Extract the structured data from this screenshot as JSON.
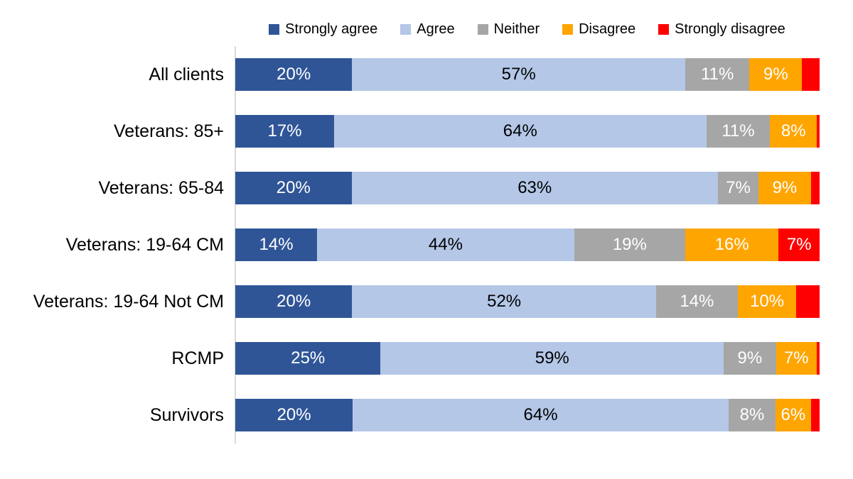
{
  "chart_data": {
    "type": "bar",
    "orientation": "horizontal",
    "stacked": true,
    "title": "",
    "xlabel": "",
    "ylabel": "",
    "xlim": [
      0,
      100
    ],
    "grid": false,
    "legend_position": "top",
    "axis_line_color": "#d9d9d9",
    "categories": [
      "All clients",
      "Veterans: 85+",
      "Veterans: 65-84",
      "Veterans: 19-64 CM",
      "Veterans: 19-64 Not CM",
      "RCMP",
      "Survivors"
    ],
    "series": [
      {
        "name": "Strongly agree",
        "color": "#2f5597",
        "label_color": "#ffffff",
        "values": [
          20,
          17,
          20,
          14,
          20,
          25,
          20
        ],
        "labels": [
          "20%",
          "17%",
          "20%",
          "14%",
          "20%",
          "25%",
          "20%"
        ]
      },
      {
        "name": "Agree",
        "color": "#b4c7e7",
        "label_color": "#000000",
        "values": [
          57,
          64,
          63,
          44,
          52,
          59,
          64
        ],
        "labels": [
          "57%",
          "64%",
          "63%",
          "44%",
          "52%",
          "59%",
          "64%"
        ]
      },
      {
        "name": "Neither",
        "color": "#a6a6a6",
        "label_color": "#ffffff",
        "values": [
          11,
          11,
          7,
          19,
          14,
          9,
          8
        ],
        "labels": [
          "11%",
          "11%",
          "7%",
          "19%",
          "14%",
          "9%",
          "8%"
        ]
      },
      {
        "name": "Disagree",
        "color": "#ffa500",
        "label_color": "#ffffff",
        "values": [
          9,
          8,
          9,
          16,
          10,
          7,
          6
        ],
        "labels": [
          "9%",
          "8%",
          "9%",
          "16%",
          "10%",
          "7%",
          "6%"
        ]
      },
      {
        "name": "Strongly disagree",
        "color": "#ff0000",
        "label_color": "#ffffff",
        "values": [
          3,
          0.5,
          1.5,
          7,
          4,
          0.5,
          1.5
        ],
        "labels": [
          "",
          "",
          "",
          "7%",
          "",
          "",
          ""
        ]
      }
    ]
  }
}
